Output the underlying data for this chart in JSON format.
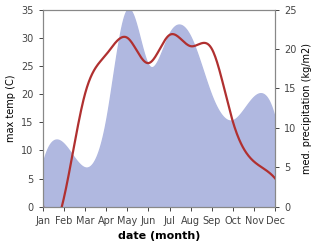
{
  "months": [
    "Jan",
    "Feb",
    "Mar",
    "Apr",
    "May",
    "Jun",
    "Jul",
    "Aug",
    "Sep",
    "Oct",
    "Nov",
    "Dec"
  ],
  "month_x": [
    0,
    1,
    2,
    3,
    4,
    5,
    6,
    7,
    8,
    9,
    10,
    11
  ],
  "temperature": [
    0.5,
    1.5,
    20.0,
    27.0,
    30.0,
    25.5,
    30.5,
    28.5,
    28.0,
    15.0,
    8.0,
    5.0
  ],
  "precipitation": [
    5.5,
    8.0,
    5.0,
    11.0,
    25.0,
    18.0,
    22.0,
    21.5,
    14.0,
    11.0,
    14.0,
    11.0
  ],
  "temp_color": "#b03030",
  "precip_color": "#b0b8e0",
  "temp_ylim": [
    0,
    35
  ],
  "precip_ylim": [
    0,
    25
  ],
  "xlabel": "date (month)",
  "ylabel_left": "max temp (C)",
  "ylabel_right": "med. precipitation (kg/m2)",
  "bg_color": "#ffffff",
  "xlabel_fontsize": 8,
  "ylabel_fontsize": 7,
  "tick_fontsize": 7
}
